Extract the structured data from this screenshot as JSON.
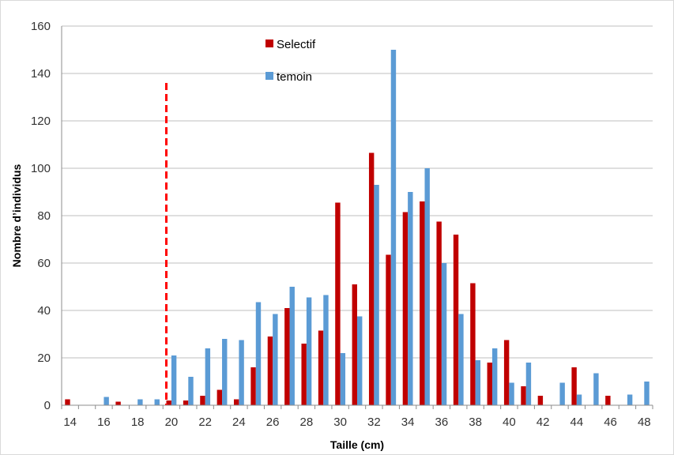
{
  "chart_data": {
    "type": "bar",
    "title": "",
    "xlabel": "Taille (cm)",
    "ylabel": "Nombre d’individus",
    "ylim": [
      0,
      160
    ],
    "yticks": [
      0,
      20,
      40,
      60,
      80,
      100,
      120,
      140,
      160
    ],
    "xlim": [
      14,
      48
    ],
    "xticks": [
      14,
      16,
      18,
      20,
      22,
      24,
      26,
      28,
      30,
      32,
      34,
      36,
      38,
      40,
      42,
      44,
      46,
      48
    ],
    "x": [
      14,
      15,
      16,
      17,
      18,
      19,
      20,
      21,
      22,
      23,
      24,
      25,
      26,
      27,
      28,
      29,
      30,
      31,
      32,
      33,
      34,
      35,
      36,
      37,
      38,
      39,
      40,
      41,
      42,
      43,
      44,
      45,
      46,
      47,
      48
    ],
    "series": [
      {
        "name": "Selectif",
        "color": "#c00000",
        "values": [
          2.5,
          0,
          0,
          1.5,
          0,
          0,
          2,
          2,
          4,
          6.5,
          2.5,
          16,
          29,
          41,
          26,
          31.5,
          85.5,
          51,
          106.5,
          63.5,
          81.5,
          86,
          77.5,
          72,
          51.5,
          18,
          27.5,
          8,
          4,
          0,
          16,
          0,
          4,
          0,
          0
        ]
      },
      {
        "name": "temoin",
        "color": "#5b9bd5",
        "values": [
          0,
          0,
          3.5,
          0,
          2.5,
          2.5,
          21,
          12,
          24,
          28,
          27.5,
          43.5,
          38.5,
          50,
          45.5,
          46.5,
          22,
          37.5,
          93,
          150,
          90,
          100,
          60,
          38.5,
          19,
          24,
          9.5,
          18,
          0,
          9.5,
          4.5,
          13.5,
          0,
          4.5,
          10
        ]
      }
    ],
    "reference_line": {
      "x": 19.7,
      "style": "dashed",
      "color": "#ff0000"
    },
    "grid": true,
    "legend_position": "top-center"
  }
}
